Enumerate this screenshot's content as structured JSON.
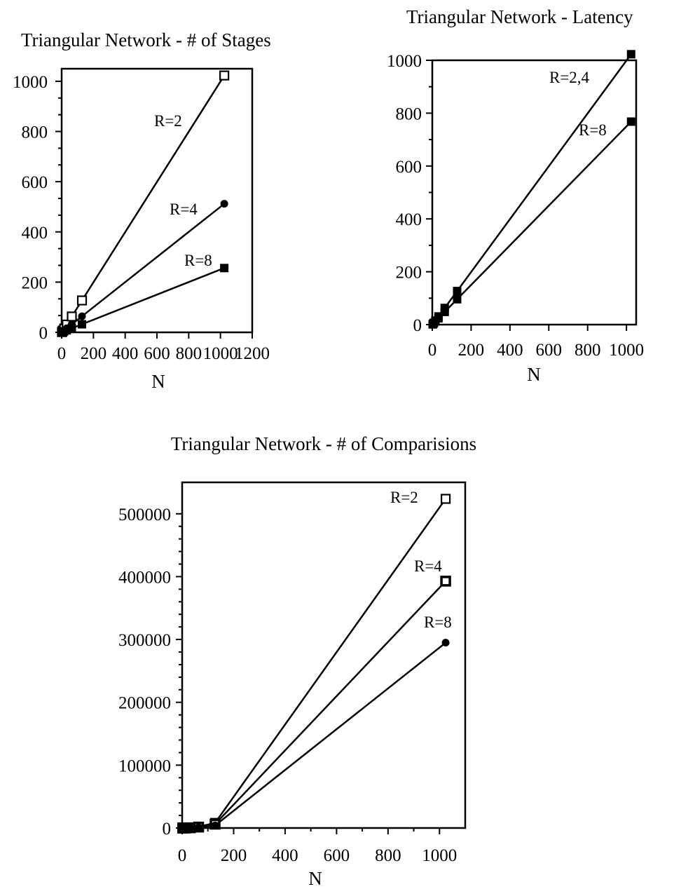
{
  "chart_data": [
    {
      "type": "line",
      "title": "Triangular Network - # of Stages",
      "xlabel": "N",
      "ylabel": "",
      "xlim": [
        0,
        1200
      ],
      "ylim": [
        0,
        1050
      ],
      "xticks": [
        "0",
        "200",
        "400",
        "600",
        "800",
        "1000",
        "1200"
      ],
      "yticks": [
        "0",
        "200",
        "400",
        "600",
        "800",
        "1000"
      ],
      "x": [
        2,
        4,
        8,
        16,
        32,
        64,
        128,
        1024
      ],
      "series": [
        {
          "name": "R=2",
          "marker": "open-square",
          "values": [
            1,
            3,
            7,
            15,
            31,
            63,
            127,
            1023
          ]
        },
        {
          "name": "R=4",
          "marker": "filled-circle",
          "values": [
            1,
            2,
            4,
            8,
            16,
            32,
            64,
            512
          ]
        },
        {
          "name": "R=8",
          "marker": "filled-square",
          "values": [
            0.5,
            1,
            2,
            4,
            8,
            16,
            32,
            256
          ]
        }
      ]
    },
    {
      "type": "line",
      "title": "Triangular Network - Latency",
      "xlabel": "N",
      "ylabel": "",
      "xlim": [
        0,
        1050
      ],
      "ylim": [
        0,
        1000
      ],
      "xticks": [
        "0",
        "200",
        "400",
        "600",
        "800",
        "1000"
      ],
      "yticks": [
        "0",
        "200",
        "400",
        "600",
        "800",
        "1000"
      ],
      "x": [
        2,
        4,
        8,
        16,
        32,
        64,
        128,
        1024
      ],
      "series": [
        {
          "name": "R=2,4",
          "marker": "filled-square",
          "values": [
            1,
            3,
            7,
            15,
            31,
            63,
            127,
            1023
          ]
        },
        {
          "name": "R=8",
          "marker": "filled-square",
          "values": [
            1,
            3,
            6,
            12,
            24,
            48,
            96,
            768
          ]
        }
      ]
    },
    {
      "type": "line",
      "title": "Triangular Network - # of Comparisions",
      "xlabel": "N",
      "ylabel": "",
      "xlim": [
        0,
        1100
      ],
      "ylim": [
        0,
        550000
      ],
      "xticks": [
        "0",
        "200",
        "400",
        "600",
        "800",
        "1000"
      ],
      "yticks": [
        "0",
        "100000",
        "200000",
        "300000",
        "400000",
        "500000"
      ],
      "x": [
        2,
        4,
        8,
        16,
        32,
        64,
        128,
        1024
      ],
      "series": [
        {
          "name": "R=2",
          "marker": "open-square",
          "values": [
            1,
            6,
            28,
            120,
            496,
            2016,
            8128,
            523776
          ]
        },
        {
          "name": "R=4",
          "marker": "open-square-dark",
          "values": [
            1,
            4,
            21,
            90,
            372,
            1512,
            6096,
            392832
          ]
        },
        {
          "name": "R=8",
          "marker": "filled-circle",
          "values": [
            1,
            3,
            14,
            60,
            248,
            1008,
            4064,
            294912
          ]
        }
      ]
    }
  ]
}
